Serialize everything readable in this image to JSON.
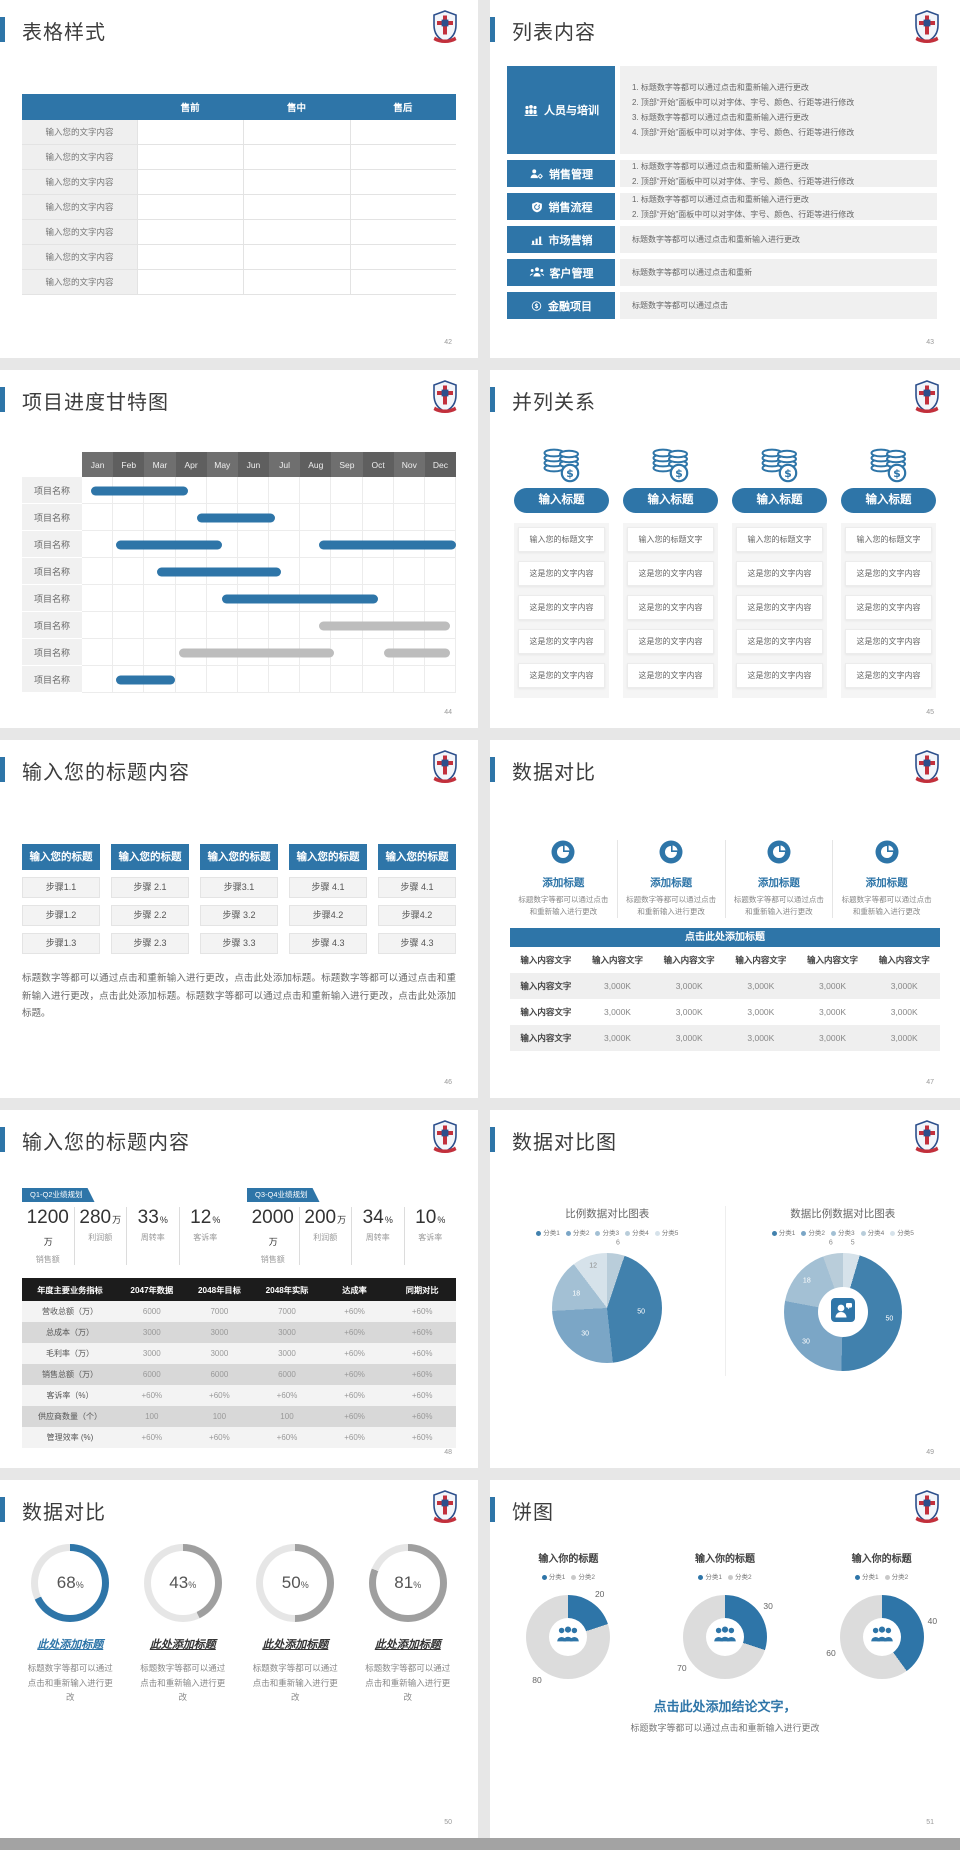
{
  "colors": {
    "accent": "#2e75a8",
    "gantt_blue": "#2e75a8",
    "gantt_gray": "#bdbdbd",
    "table_header_black": "#1c1c1c",
    "pie_gray": "#dcdcdc"
  },
  "slides": {
    "s1": {
      "title": "表格样式",
      "page": "42",
      "table": {
        "headers": [
          "",
          "售前",
          "售中",
          "售后"
        ],
        "row_label": "输入您的文字内容",
        "row_count": 7
      }
    },
    "s2": {
      "title": "列表内容",
      "page": "43",
      "items": [
        {
          "icon": "people-training-icon",
          "label": "人员与培训",
          "lines": [
            "1.  标题数字等都可以通过点击和重新输入进行更改",
            "2.  顶部“开始”面板中可以对字体、字号、颜色、行距等进行修改",
            "3.  标题数字等都可以通过点击和重新输入进行更改",
            "4.  顶部“开始”面板中可以对字体、字号、颜色、行距等进行修改"
          ]
        },
        {
          "icon": "sales-management-icon",
          "label": "销售管理",
          "lines": [
            "1.  标题数字等都可以通过点击和重新输入进行更改",
            "2.  顶部“开始”面板中可以对字体、字号、颜色、行距等进行修改"
          ]
        },
        {
          "icon": "sales-process-icon",
          "label": "销售流程",
          "lines": [
            "1.  标题数字等都可以通过点击和重新输入进行更改",
            "2.  顶部“开始”面板中可以对字体、字号、颜色、行距等进行修改"
          ]
        },
        {
          "icon": "marketing-icon",
          "label": "市场营销",
          "lines": [
            "标题数字等都可以通过点击和重新输入进行更改"
          ]
        },
        {
          "icon": "customer-management-icon",
          "label": "客户管理",
          "lines": [
            "标题数字等都可以通过点击和重新"
          ]
        },
        {
          "icon": "finance-icon",
          "label": "金融项目",
          "lines": [
            "标题数字等都可以通过点击"
          ]
        }
      ]
    },
    "s3": {
      "title": "项目进度甘特图",
      "page": "44",
      "months": [
        "Jan",
        "Feb",
        "Mar",
        "Apr",
        "May",
        "Jun",
        "Jul",
        "Aug",
        "Sep",
        "Oct",
        "Nov",
        "Dec"
      ],
      "row_label": "项目名称",
      "row_count": 8,
      "bars": [
        {
          "row": 0,
          "start": 0.3,
          "end": 3.4,
          "color": "blue"
        },
        {
          "row": 1,
          "start": 3.7,
          "end": 6.2,
          "color": "blue"
        },
        {
          "row": 2,
          "start": 1.1,
          "end": 4.5,
          "color": "blue"
        },
        {
          "row": 2,
          "start": 7.6,
          "end": 12,
          "color": "blue"
        },
        {
          "row": 3,
          "start": 2.4,
          "end": 6.4,
          "color": "blue"
        },
        {
          "row": 4,
          "start": 4.5,
          "end": 9.5,
          "color": "blue"
        },
        {
          "row": 5,
          "start": 7.6,
          "end": 11.8,
          "color": "gray"
        },
        {
          "row": 6,
          "start": 3.1,
          "end": 8.1,
          "color": "gray"
        },
        {
          "row": 6,
          "start": 9.7,
          "end": 11.8,
          "color": "gray"
        },
        {
          "row": 7,
          "start": 1.1,
          "end": 3.0,
          "color": "blue"
        }
      ]
    },
    "s4": {
      "title": "并列关系",
      "page": "45",
      "columns": [
        {
          "button": "输入标题",
          "boxes": [
            "输入您的标题文字",
            "这是您的文字内容",
            "这是您的文字内容",
            "这是您的文字内容",
            "这是您的文字内容"
          ]
        },
        {
          "button": "输入标题",
          "boxes": [
            "输入您的标题文字",
            "这是您的文字内容",
            "这是您的文字内容",
            "这是您的文字内容",
            "这是您的文字内容"
          ]
        },
        {
          "button": "输入标题",
          "boxes": [
            "输入您的标题文字",
            "这是您的文字内容",
            "这是您的文字内容",
            "这是您的文字内容",
            "这是您的文字内容"
          ]
        },
        {
          "button": "输入标题",
          "boxes": [
            "输入您的标题文字",
            "这是您的文字内容",
            "这是您的文字内容",
            "这是您的文字内容",
            "这是您的文字内容"
          ]
        }
      ]
    },
    "s5": {
      "title": "输入您的标题内容",
      "page": "46",
      "columns": [
        {
          "header": "输入您的标题",
          "steps": [
            "步骤1.1",
            "步骤1.2",
            "步骤1.3"
          ]
        },
        {
          "header": "输入您的标题",
          "steps": [
            "步骤 2.1",
            "步骤 2.2",
            "步骤 2.3"
          ]
        },
        {
          "header": "输入您的标题",
          "steps": [
            "步骤3.1",
            "步骤 3.2",
            "步骤 3.3"
          ]
        },
        {
          "header": "输入您的标题",
          "steps": [
            "步骤 4.1",
            "步骤4.2",
            "步骤 4.3"
          ]
        },
        {
          "header": "输入您的标题",
          "steps": [
            "步骤 4.1",
            "步骤4.2",
            "步骤 4.3"
          ]
        }
      ],
      "paragraph": "标题数字等都可以通过点击和重新输入进行更改，点击此处添加标题。标题数字等都可以通过点击和重新输入进行更改，点击此处添加标题。标题数字等都可以通过点击和重新输入进行更改，点击此处添加标题。"
    },
    "s6": {
      "title": "数据对比",
      "page": "47",
      "features": [
        {
          "title": "添加标题",
          "desc": "标题数字等都可以通过点击和重新输入进行更改"
        },
        {
          "title": "添加标题",
          "desc": "标题数字等都可以通过点击和重新输入进行更改"
        },
        {
          "title": "添加标题",
          "desc": "标题数字等都可以通过点击和重新输入进行更改"
        },
        {
          "title": "添加标题",
          "desc": "标题数字等都可以通过点击和重新输入进行更改"
        }
      ],
      "banner": "点击此处添加标题",
      "table": {
        "header": [
          "输入内容文字",
          "输入内容文字",
          "输入内容文字",
          "输入内容文字",
          "输入内容文字",
          "输入内容文字"
        ],
        "rows": [
          [
            "输入内容文字",
            "3,000K",
            "3,000K",
            "3,000K",
            "3,000K",
            "3,000K"
          ],
          [
            "输入内容文字",
            "3,000K",
            "3,000K",
            "3,000K",
            "3,000K",
            "3,000K"
          ],
          [
            "输入内容文字",
            "3,000K",
            "3,000K",
            "3,000K",
            "3,000K",
            "3,000K"
          ]
        ]
      }
    },
    "s7": {
      "title": "输入您的标题内容",
      "page": "48",
      "groups": [
        {
          "badge": "Q1-Q2业绩规划",
          "stats": [
            {
              "value": "1200",
              "unit": "万",
              "label": "销售额"
            },
            {
              "value": "280",
              "unit": "万",
              "label": "利润额"
            },
            {
              "value": "33",
              "unit": "%",
              "label": "周转率"
            },
            {
              "value": "12",
              "unit": "%",
              "label": "客诉率"
            }
          ]
        },
        {
          "badge": "Q3-Q4业绩规划",
          "stats": [
            {
              "value": "2000",
              "unit": "万",
              "label": "销售额"
            },
            {
              "value": "200",
              "unit": "万",
              "label": "利润额"
            },
            {
              "value": "34",
              "unit": "%",
              "label": "周转率"
            },
            {
              "value": "10",
              "unit": "%",
              "label": "客诉率"
            }
          ]
        }
      ],
      "table": {
        "headers": [
          "年度主要业务指标",
          "2047年数据",
          "2048年目标",
          "2048年实际",
          "达成率",
          "同期对比"
        ],
        "rows": [
          [
            "营收总额（万）",
            "6000",
            "7000",
            "7000",
            "+60%",
            "+60%"
          ],
          [
            "总成本（万）",
            "3000",
            "3000",
            "3000",
            "+60%",
            "+60%"
          ],
          [
            "毛利率（万）",
            "3000",
            "3000",
            "3000",
            "+60%",
            "+60%"
          ],
          [
            "销售总额（万）",
            "6000",
            "6000",
            "6000",
            "+60%",
            "+60%"
          ],
          [
            "客诉率（%）",
            "+60%",
            "+60%",
            "+60%",
            "+60%",
            "+60%"
          ],
          [
            "供应商数量（个）",
            "100",
            "100",
            "100",
            "+60%",
            "+60%"
          ],
          [
            "管理效率 (%)",
            "+60%",
            "+60%",
            "+60%",
            "+60%",
            "+60%"
          ]
        ]
      }
    },
    "s8": {
      "title": "数据对比图",
      "page": "49",
      "palette": [
        "#4181ad",
        "#7ba6c6",
        "#a3c0d4",
        "#b9cdda",
        "#d6e2ea"
      ],
      "charts": [
        {
          "type": "pie",
          "title": "比例数据对比图表",
          "legend": [
            "分类1",
            "分类2",
            "分类3",
            "分类4",
            "分类5"
          ],
          "slices": [
            {
              "value": 6,
              "color": "#b9cdda"
            },
            {
              "value": 50,
              "color": "#4181ad"
            },
            {
              "value": 30,
              "color": "#7ba6c6"
            },
            {
              "value": 18,
              "color": "#a3c0d4"
            },
            {
              "value": 12,
              "color": "#d6e2ea"
            }
          ]
        },
        {
          "type": "donut",
          "title": "数据比例数据对比图表",
          "legend": [
            "分类1",
            "分类2",
            "分类3",
            "分类4",
            "分类5"
          ],
          "slices": [
            {
              "value": 5,
              "color": "#d6e2ea"
            },
            {
              "value": 50,
              "color": "#4181ad"
            },
            {
              "value": 30,
              "color": "#7ba6c6"
            },
            {
              "value": 18,
              "color": "#a3c0d4"
            },
            {
              "value": 6,
              "color": "#b9cdda"
            }
          ]
        }
      ]
    },
    "s9": {
      "title": "数据对比",
      "page": "50",
      "gauges": [
        {
          "percent": "68",
          "accent": true
        },
        {
          "percent": "43",
          "accent": false
        },
        {
          "percent": "50",
          "accent": false
        },
        {
          "percent": "81",
          "accent": false
        }
      ],
      "gauge_title": "此处添加标题",
      "gauge_desc": "标题数字等都可以通过点击和重新输入进行更改"
    },
    "s10": {
      "title": "饼图",
      "page": "51",
      "pies": [
        {
          "title": "输入你的标题",
          "legend": [
            "分类1",
            "分类2"
          ],
          "values": [
            20,
            80
          ]
        },
        {
          "title": "输入你的标题",
          "legend": [
            "分类1",
            "分类2"
          ],
          "values": [
            30,
            70
          ]
        },
        {
          "title": "输入你的标题",
          "legend": [
            "分类1",
            "分类2"
          ],
          "values": [
            40,
            60
          ]
        }
      ],
      "conclusion": "点击此处添加结论文字，",
      "conclusion_sub": "标题数字等都可以通过点击和重新输入进行更改"
    }
  },
  "chart_data": [
    {
      "type": "gantt",
      "title": "项目进度甘特图",
      "x_labels": [
        "Jan",
        "Feb",
        "Mar",
        "Apr",
        "May",
        "Jun",
        "Jul",
        "Aug",
        "Sep",
        "Oct",
        "Nov",
        "Dec"
      ],
      "row_label": "项目名称",
      "rows": 8,
      "bars_months": [
        [
          0.3,
          3.4
        ],
        [
          3.7,
          6.2
        ],
        [
          1.1,
          4.5
        ],
        [
          7.6,
          12
        ],
        [
          2.4,
          6.4
        ],
        [
          4.5,
          9.5
        ],
        [
          7.6,
          11.8
        ],
        [
          3.1,
          8.1
        ],
        [
          9.7,
          11.8
        ],
        [
          1.1,
          3.0
        ]
      ]
    },
    {
      "type": "pie",
      "title": "比例数据对比图表",
      "legend": [
        "分类1",
        "分类2",
        "分类3",
        "分类4",
        "分类5"
      ],
      "values": [
        50,
        30,
        18,
        12,
        6
      ]
    },
    {
      "type": "donut",
      "title": "数据比例数据对比图表",
      "legend": [
        "分类1",
        "分类2",
        "分类3",
        "分类4",
        "分类5"
      ],
      "values": [
        50,
        30,
        18,
        6,
        5
      ]
    },
    {
      "type": "donut-gauge",
      "values_percent": [
        68,
        43,
        50,
        81
      ],
      "labels": [
        "此处添加标题",
        "此处添加标题",
        "此处添加标题",
        "此处添加标题"
      ]
    },
    {
      "type": "donut",
      "title": "输入你的标题",
      "legend": [
        "分类1",
        "分类2"
      ],
      "values": [
        20,
        80
      ]
    },
    {
      "type": "donut",
      "title": "输入你的标题",
      "legend": [
        "分类1",
        "分类2"
      ],
      "values": [
        30,
        70
      ]
    },
    {
      "type": "donut",
      "title": "输入你的标题",
      "legend": [
        "分类1",
        "分类2"
      ],
      "values": [
        40,
        60
      ]
    }
  ]
}
